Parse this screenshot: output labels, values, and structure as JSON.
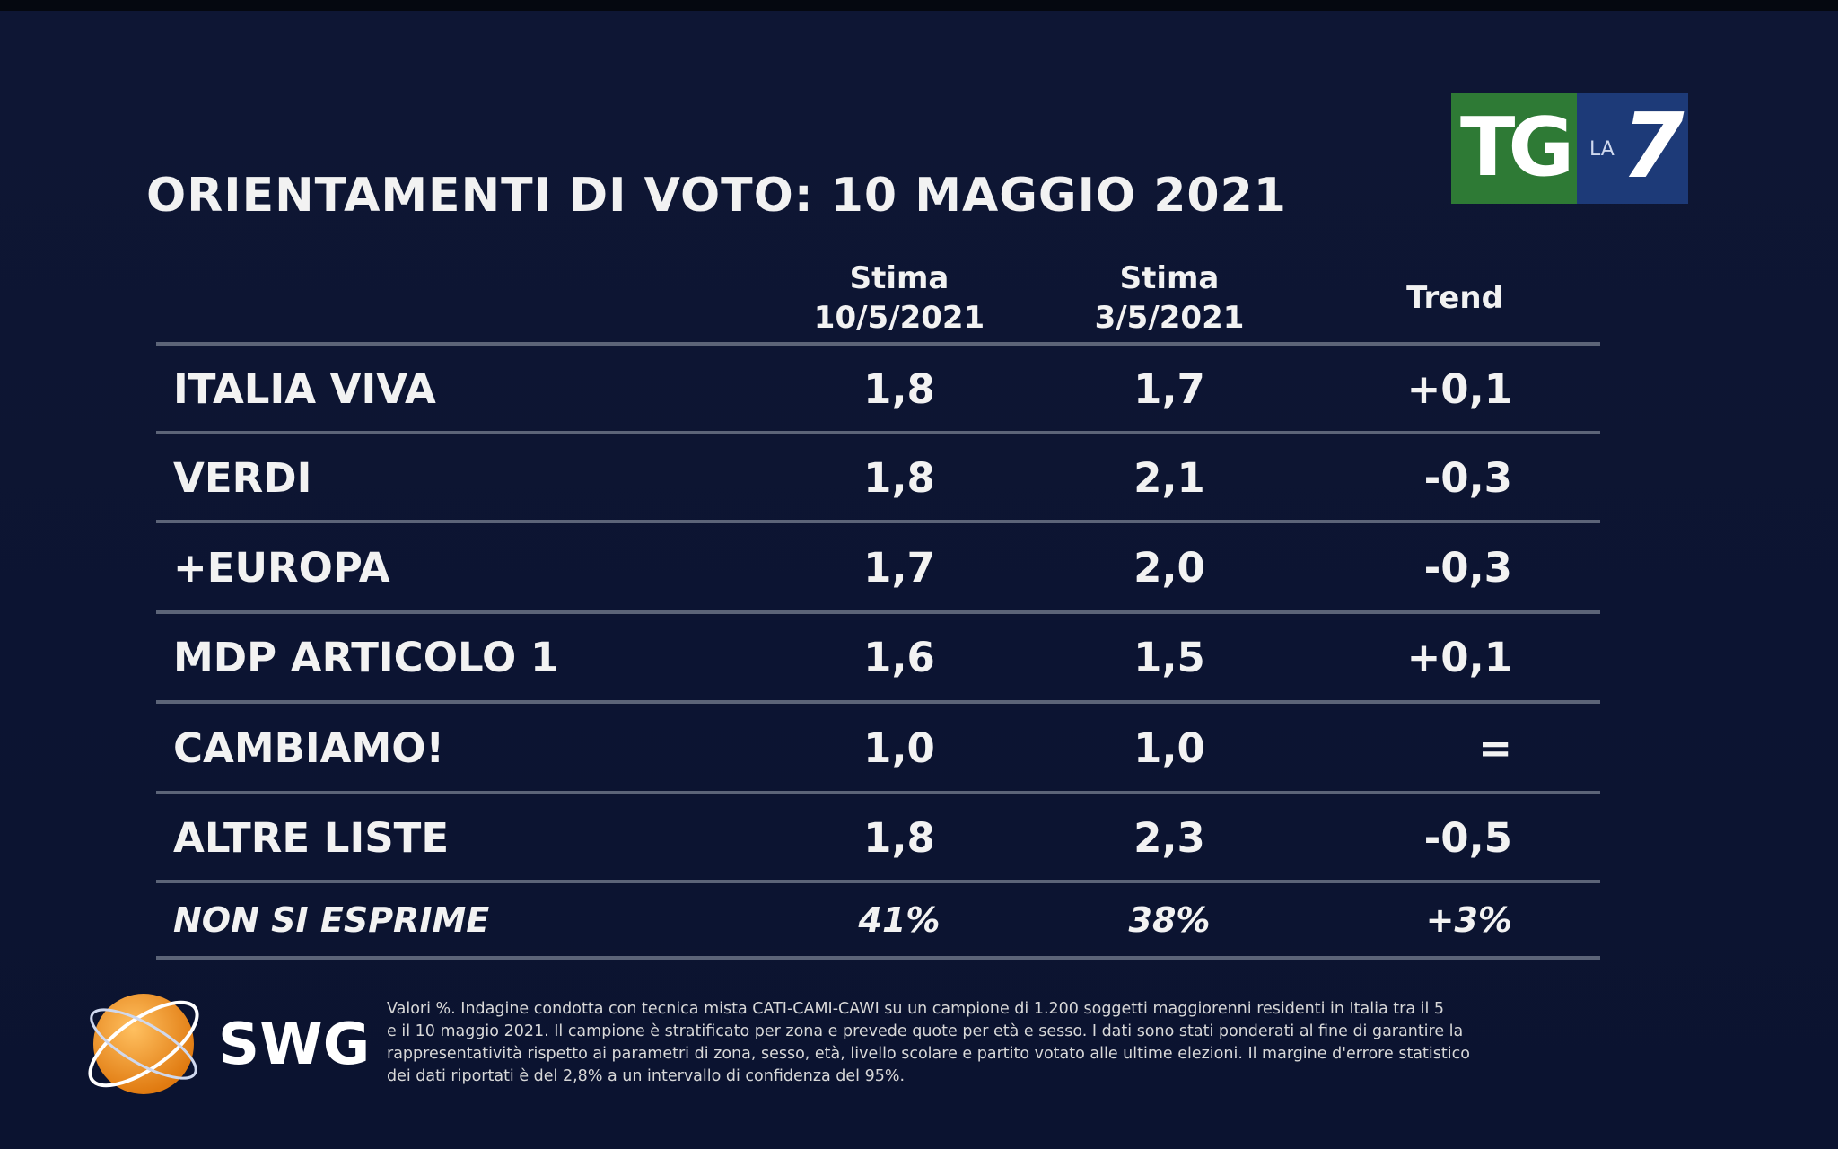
{
  "header": {
    "title": "ORIENTAMENTI DI VOTO: 10 MAGGIO 2021"
  },
  "logo": {
    "tg": "TG",
    "la": "LA",
    "seven": "7"
  },
  "table": {
    "columns": [
      [
        "Stima",
        "10/5/2021"
      ],
      [
        "Stima",
        "3/5/2021"
      ],
      [
        "Trend"
      ]
    ],
    "rows": [
      [
        "ITALIA VIVA",
        "1,8",
        "1,7",
        "+0,1"
      ],
      [
        "VERDI",
        "1,8",
        "2,1",
        "-0,3"
      ],
      [
        "+EUROPA",
        "1,7",
        "2,0",
        "-0,3"
      ],
      [
        "MDP ARTICOLO 1",
        "1,6",
        "1,5",
        "+0,1"
      ],
      [
        "CAMBIAMO!",
        "1,0",
        "1,0",
        "="
      ],
      [
        "ALTRE LISTE",
        "1,8",
        "2,3",
        "-0,5"
      ],
      [
        "NON SI ESPRIME",
        "41%",
        "38%",
        "+3%"
      ]
    ]
  },
  "footer": {
    "brand": "SWG",
    "note": [
      "Valori %. Indagine condotta con tecnica mista CATI-CAMI-CAWI su un campione di 1.200 soggetti maggiorenni residenti in Italia tra il 5",
      "e il 10 maggio 2021. Il campione è stratificato per zona e prevede quote per età e sesso. I dati sono stati ponderati al fine di garantire la",
      "rappresentatività rispetto ai parametri di zona, sesso, età, livello scolare e partito votato alle ultime elezioni. Il margine d'errore statistico",
      "dei dati riportati è del 2,8% a un intervallo di confidenza del 95%."
    ]
  }
}
